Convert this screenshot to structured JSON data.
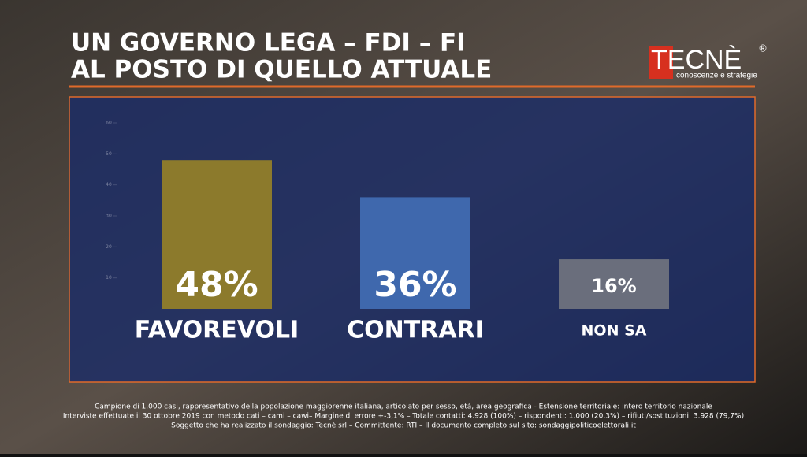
{
  "chart_data": {
    "type": "bar",
    "title": [
      "UN GOVERNO LEGA – FDI – FI",
      "AL POSTO DI QUELLO ATTUALE"
    ],
    "categories": [
      "FAVOREVOLI",
      "CONTRARI",
      "NON SA"
    ],
    "values": [
      48,
      36,
      16
    ],
    "value_labels": [
      "48%",
      "36%",
      "16%"
    ],
    "colors": [
      "#8c7a2c",
      "#3f68ad",
      "#6a6e7c"
    ],
    "ylim": [
      0,
      60
    ],
    "yticks": [
      10,
      20,
      30,
      40,
      50,
      60
    ]
  },
  "logo": {
    "name": "TECNÈ",
    "mark": "®",
    "tagline": "conoscenze e strategie"
  },
  "footnote": [
    "Campione di 1.000 casi, rappresentativo della popolazione maggiorenne italiana, articolato per sesso, età, area geografica - Estensione territoriale: intero territorio nazionale",
    "Interviste effettuate il 30 ottobre 2019 con metodo cati – cami – cawi– Margine di errore +-3,1% – Totale contatti: 4.928 (100%) – rispondenti:  1.000 (20,3%) – rifiuti/sostituzioni: 3.928 (79,7%)",
    "Soggetto che ha realizzato il sondaggio: Tecnè srl – Committente: RTI – Il documento completo sul sito: sondaggipoliticoelettorali.it"
  ]
}
